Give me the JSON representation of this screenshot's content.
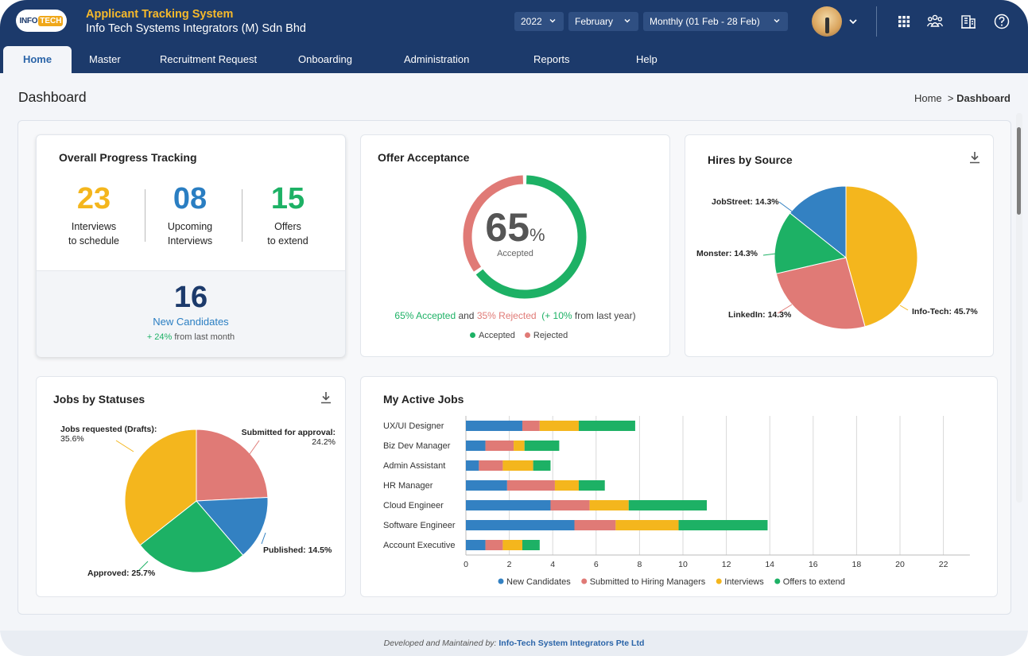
{
  "header": {
    "logo_left": "INFO",
    "logo_right": "TECH",
    "app_title": "Applicant Tracking System",
    "company": "Info Tech Systems Integrators (M) Sdn Bhd",
    "year": "2022",
    "month": "February",
    "period": "Monthly (01 Feb - 28 Feb)"
  },
  "nav": {
    "home": "Home",
    "master": "Master",
    "recruitment": "Recruitment Request",
    "onboarding": "Onboarding",
    "administration": "Administration",
    "reports": "Reports",
    "help": "Help"
  },
  "page": {
    "title": "Dashboard",
    "crumb_home": "Home",
    "crumb_sep": ">",
    "crumb_current": "Dashboard"
  },
  "progress": {
    "title": "Overall Progress Tracking",
    "interviews_num": "23",
    "interviews_l1": "Interviews",
    "interviews_l2": "to schedule",
    "upcoming_num": "08",
    "upcoming_l1": "Upcoming",
    "upcoming_l2": "Interviews",
    "offers_num": "15",
    "offers_l1": "Offers",
    "offers_l2": "to extend",
    "new_num": "16",
    "new_label": "New Candidates",
    "new_change": "+ 24%",
    "new_change_rest": " from last month"
  },
  "offer": {
    "title": "Offer Acceptance",
    "accepted_value": 65,
    "pct_num": "65",
    "pct_sign": "%",
    "pct_caption": "Accepted",
    "sum_accepted": "65% Accepted",
    "sum_and": " and ",
    "sum_rejected": "35% Rejected",
    "sum_change": "(+ 10%",
    "sum_rest": " from last year)",
    "legend_accepted": "Accepted",
    "legend_rejected": "Rejected",
    "color_accepted": "#1db165",
    "color_rejected": "#e07a76"
  },
  "hires": {
    "title": "Hires by Source",
    "label_jobstreet": "JobStreet: 14.3%",
    "label_monster": "Monster: 14.3%",
    "label_linkedin": "LinkedIn: 14.3%",
    "label_infotech": "Info-Tech: 45.7%"
  },
  "jobs": {
    "title": "Jobs by Statuses",
    "label_drafts_1": "Jobs requested (Drafts):",
    "label_drafts_2": "35.6%",
    "label_submitted_1": "Submitted for approval:",
    "label_submitted_2": "24.2%",
    "label_published": "Published: 14.5%",
    "label_approved": "Approved: 25.7%"
  },
  "active": {
    "title": "My Active Jobs"
  },
  "chart_data": [
    {
      "type": "pie",
      "title": "Hires by Source",
      "categories": [
        "Info-Tech",
        "LinkedIn",
        "Monster",
        "JobStreet"
      ],
      "values": [
        45.7,
        25.7,
        14.3,
        14.3
      ],
      "colors": [
        "#f4b61d",
        "#e07a76",
        "#1db165",
        "#3381c2"
      ]
    },
    {
      "type": "pie",
      "title": "Jobs by Statuses",
      "categories": [
        "Submitted for approval",
        "Published",
        "Approved",
        "Jobs requested (Drafts)"
      ],
      "values": [
        24.2,
        14.5,
        25.7,
        35.6
      ],
      "colors": [
        "#e07a76",
        "#3381c2",
        "#1db165",
        "#f4b61d"
      ]
    },
    {
      "type": "bar",
      "orientation": "horizontal",
      "stacked": true,
      "title": "My Active Jobs",
      "categories": [
        "UX/UI Designer",
        "Biz Dev Manager",
        "Admin Assistant",
        "HR Manager",
        "Cloud Engineer",
        "Software Engineer",
        "Account Executive"
      ],
      "series": [
        {
          "name": "New Candidates",
          "color": "#3381c2",
          "values": [
            2.6,
            0.9,
            0.6,
            1.9,
            3.9,
            5.0,
            0.9
          ]
        },
        {
          "name": "Submitted to Hiring Managers",
          "color": "#e07a76",
          "values": [
            0.8,
            1.3,
            1.1,
            2.2,
            1.8,
            1.9,
            0.8
          ]
        },
        {
          "name": "Interviews",
          "color": "#f4b61d",
          "values": [
            1.8,
            0.5,
            1.4,
            1.1,
            1.8,
            2.9,
            0.9
          ]
        },
        {
          "name": "Offers to extend",
          "color": "#1db165",
          "values": [
            2.6,
            1.6,
            0.8,
            1.2,
            3.6,
            4.1,
            0.8
          ]
        }
      ],
      "xlim": [
        0,
        23
      ],
      "xticks": [
        "0",
        "2",
        "4",
        "6",
        "8",
        "10",
        "12",
        "14",
        "16",
        "18",
        "20",
        "22"
      ],
      "grid": true,
      "legend": "bottom"
    }
  ],
  "footer": {
    "prefix": "Developed and Maintained by: ",
    "who": "Info-Tech System Integrators Pte Ltd"
  }
}
